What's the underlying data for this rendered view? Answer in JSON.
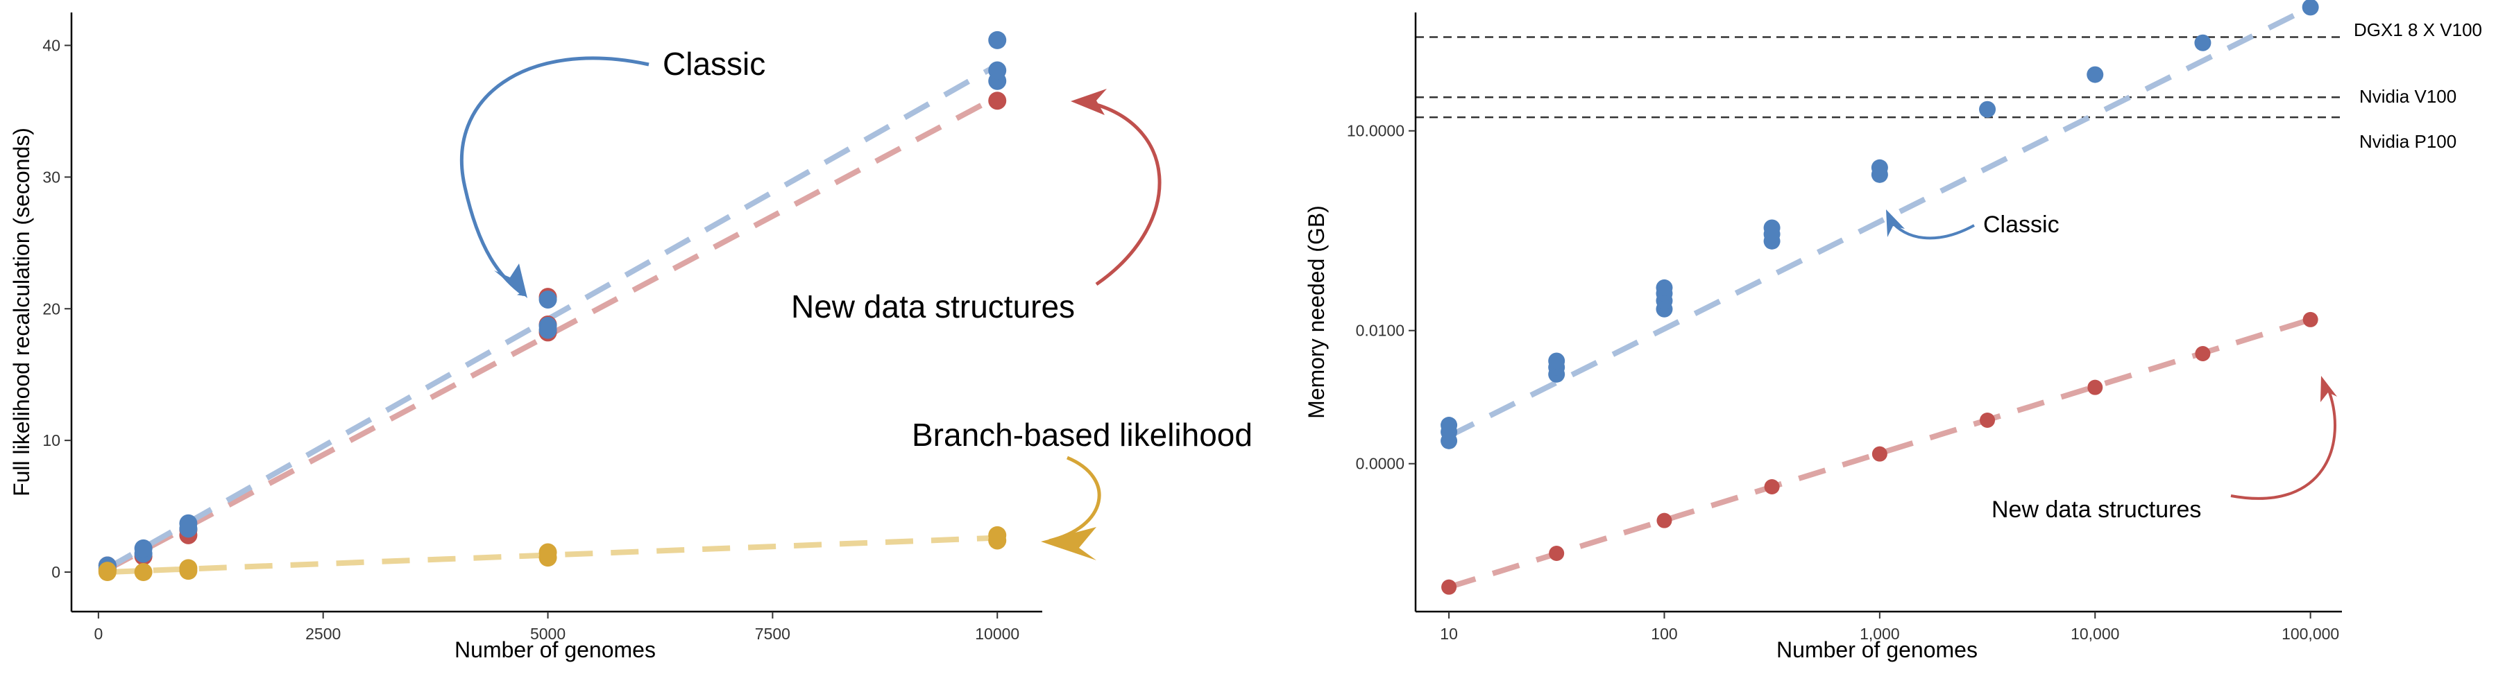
{
  "colors": {
    "classic": "#4f81bd",
    "classic_line": "#a9bfdd",
    "new": "#c0504d",
    "new_line": "#dda5a4",
    "branch": "#d6a536",
    "branch_line": "#ecd597"
  },
  "chart_data": [
    {
      "type": "scatter",
      "xlabel": "Number of genomes",
      "ylabel": "Full likelihood recalculation (seconds)",
      "xlim": [
        -300,
        10500
      ],
      "ylim": [
        -3,
        42.5
      ],
      "xticks": [
        0,
        2500,
        5000,
        7500,
        10000
      ],
      "xtick_labels": [
        "0",
        "2500",
        "5000",
        "7500",
        "10000"
      ],
      "yticks": [
        0,
        10,
        20,
        30,
        40
      ],
      "ytick_labels": [
        "0",
        "10",
        "20",
        "30",
        "40"
      ],
      "grid": false,
      "series": [
        {
          "key": "new",
          "points": [
            [
              100,
              0.2
            ],
            [
              100,
              0.5
            ],
            [
              500,
              1.2
            ],
            [
              1000,
              2.8
            ],
            [
              1000,
              3.2
            ],
            [
              5000,
              18.2
            ],
            [
              5000,
              18.8
            ],
            [
              5000,
              20.9
            ],
            [
              10000,
              35.8
            ]
          ],
          "fit": [
            [
              100,
              0.2
            ],
            [
              10000,
              36.1
            ]
          ]
        },
        {
          "key": "classic",
          "points": [
            [
              100,
              0.3
            ],
            [
              100,
              0.5
            ],
            [
              500,
              1.4
            ],
            [
              500,
              1.8
            ],
            [
              1000,
              3.3
            ],
            [
              1000,
              3.7
            ],
            [
              5000,
              18.4
            ],
            [
              5000,
              18.7
            ],
            [
              5000,
              20.7
            ],
            [
              10000,
              37.3
            ],
            [
              10000,
              38.1
            ],
            [
              10000,
              40.4
            ]
          ],
          "fit": [
            [
              100,
              0.3
            ],
            [
              10000,
              38.5
            ]
          ]
        },
        {
          "key": "branch",
          "points": [
            [
              100,
              0.0
            ],
            [
              100,
              0.1
            ],
            [
              500,
              0.0
            ],
            [
              1000,
              0.1
            ],
            [
              1000,
              0.3
            ],
            [
              5000,
              1.1
            ],
            [
              5000,
              1.5
            ],
            [
              10000,
              2.4
            ],
            [
              10000,
              2.8
            ]
          ],
          "fit": [
            [
              100,
              0.0
            ],
            [
              10000,
              2.6
            ]
          ]
        }
      ],
      "annotations": [
        {
          "key": "classic",
          "text": "Classic"
        },
        {
          "key": "new",
          "text": "New data structures"
        },
        {
          "key": "branch",
          "text": "Branch-based likelihood"
        }
      ]
    },
    {
      "type": "scatter",
      "xlabel": "Number of genomes",
      "ylabel": "Memory needed (GB)",
      "x_scale": "log",
      "y_scale": "log",
      "xlim": [
        7,
        140000
      ],
      "ylim": [
        6e-07,
        600
      ],
      "xticks": [
        10,
        100,
        1000,
        10000,
        100000
      ],
      "xtick_labels": [
        "10",
        "100",
        "1,000",
        "10,000",
        "100,000"
      ],
      "yticks": [
        0.0001,
        0.01,
        10
      ],
      "ytick_labels": [
        "0.0000",
        "0.0100",
        "10.0000"
      ],
      "grid": false,
      "series": [
        {
          "key": "classic",
          "points": [
            [
              10,
              0.00022
            ],
            [
              10,
              0.0003
            ],
            [
              10,
              0.00038
            ],
            [
              31.6,
              0.0022
            ],
            [
              31.6,
              0.0028
            ],
            [
              31.6,
              0.0035
            ],
            [
              100,
              0.021
            ],
            [
              100,
              0.028
            ],
            [
              100,
              0.036
            ],
            [
              100,
              0.044
            ],
            [
              316,
              0.22
            ],
            [
              316,
              0.28
            ],
            [
              316,
              0.35
            ],
            [
              1000,
              2.2
            ],
            [
              1000,
              2.8
            ],
            [
              3162,
              21
            ],
            [
              10000,
              70
            ],
            [
              31620,
              210
            ],
            [
              100000,
              720
            ]
          ],
          "fit": [
            [
              10,
              0.00026
            ],
            [
              100000,
              720
            ]
          ]
        },
        {
          "key": "new",
          "points": [
            [
              10,
              1.4e-06
            ],
            [
              31.6,
              4.5e-06
            ],
            [
              100,
              1.4e-05
            ],
            [
              316,
              4.5e-05
            ],
            [
              1000,
              0.00014
            ],
            [
              3162,
              0.00045
            ],
            [
              10000,
              0.0014
            ],
            [
              31620,
              0.0045
            ],
            [
              100000,
              0.0146
            ]
          ],
          "fit": [
            [
              10,
              1.4e-06
            ],
            [
              100000,
              0.0146
            ]
          ]
        }
      ],
      "hlines": [
        {
          "y": 256,
          "label": "DGX1 8 X V100"
        },
        {
          "y": 32,
          "label": "Nvidia V100"
        },
        {
          "y": 16,
          "label": "Nvidia P100"
        }
      ],
      "annotations": [
        {
          "key": "classic",
          "text": "Classic"
        },
        {
          "key": "new",
          "text": "New data structures"
        }
      ]
    }
  ]
}
